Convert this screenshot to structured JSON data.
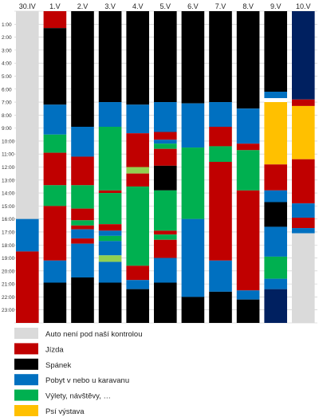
{
  "chart_data": {
    "type": "bar",
    "orientation": "vertical stacked timeline",
    "y_axis": {
      "labels": [
        "1:00",
        "2:00",
        "3:00",
        "4:00",
        "5:00",
        "6:00",
        "7:00",
        "8:00",
        "9:00",
        "10:00",
        "11:00",
        "12:00",
        "13:00",
        "14:00",
        "15:00",
        "16:00",
        "17:00",
        "18:00",
        "19:00",
        "20:00",
        "21:00",
        "22:00",
        "23:00"
      ],
      "range_hours": [
        0,
        24
      ],
      "inverted": true
    },
    "colors": {
      "not_controlled": "#dadada",
      "driving": "#c00000",
      "sleep": "#000000",
      "stay": "#0070c0",
      "trips": "#00b050",
      "dog_show": "#ffc000",
      "light_green": "#92d050",
      "navy": "#002060",
      "white": "#ffffff"
    },
    "legend": [
      {
        "key": "not_controlled",
        "label": "Auto není pod naší kontrolou"
      },
      {
        "key": "driving",
        "label": "Jízda"
      },
      {
        "key": "sleep",
        "label": "Spánek"
      },
      {
        "key": "stay",
        "label": "Pobyt v nebo u karavanu"
      },
      {
        "key": "trips",
        "label": "Výlety, návštěvy, …"
      },
      {
        "key": "dog_show",
        "label": "Psí výstava"
      }
    ],
    "days": [
      {
        "label": "30.IV",
        "segments": [
          {
            "start": 0,
            "end": 16,
            "cat": "not_controlled"
          },
          {
            "start": 16,
            "end": 18.5,
            "cat": "stay"
          },
          {
            "start": 18.5,
            "end": 24,
            "cat": "driving"
          }
        ]
      },
      {
        "label": "1.V",
        "segments": [
          {
            "start": 0,
            "end": 1.3,
            "cat": "driving"
          },
          {
            "start": 1.3,
            "end": 7.2,
            "cat": "sleep"
          },
          {
            "start": 7.2,
            "end": 9.5,
            "cat": "stay"
          },
          {
            "start": 9.5,
            "end": 10.9,
            "cat": "trips"
          },
          {
            "start": 10.9,
            "end": 13.4,
            "cat": "driving"
          },
          {
            "start": 13.4,
            "end": 15,
            "cat": "trips"
          },
          {
            "start": 15,
            "end": 19.2,
            "cat": "driving"
          },
          {
            "start": 19.2,
            "end": 20.9,
            "cat": "stay"
          },
          {
            "start": 20.9,
            "end": 24,
            "cat": "sleep"
          }
        ]
      },
      {
        "label": "2.V",
        "segments": [
          {
            "start": 0,
            "end": 8.9,
            "cat": "sleep"
          },
          {
            "start": 8.9,
            "end": 11.2,
            "cat": "stay"
          },
          {
            "start": 11.2,
            "end": 13.4,
            "cat": "driving"
          },
          {
            "start": 13.4,
            "end": 15.2,
            "cat": "trips"
          },
          {
            "start": 15.2,
            "end": 16.1,
            "cat": "driving"
          },
          {
            "start": 16.1,
            "end": 16.5,
            "cat": "trips"
          },
          {
            "start": 16.5,
            "end": 16.8,
            "cat": "driving"
          },
          {
            "start": 16.8,
            "end": 17.5,
            "cat": "stay"
          },
          {
            "start": 17.5,
            "end": 17.9,
            "cat": "driving"
          },
          {
            "start": 17.9,
            "end": 20.5,
            "cat": "stay"
          },
          {
            "start": 20.5,
            "end": 24,
            "cat": "sleep"
          }
        ]
      },
      {
        "label": "3.V",
        "segments": [
          {
            "start": 0,
            "end": 7,
            "cat": "sleep"
          },
          {
            "start": 7,
            "end": 8.9,
            "cat": "stay"
          },
          {
            "start": 8.9,
            "end": 13.8,
            "cat": "trips"
          },
          {
            "start": 13.8,
            "end": 14,
            "cat": "driving"
          },
          {
            "start": 14,
            "end": 16.4,
            "cat": "trips"
          },
          {
            "start": 16.4,
            "end": 16.9,
            "cat": "driving"
          },
          {
            "start": 16.9,
            "end": 17.3,
            "cat": "stay"
          },
          {
            "start": 17.3,
            "end": 17.7,
            "cat": "trips"
          },
          {
            "start": 17.7,
            "end": 18.8,
            "cat": "stay"
          },
          {
            "start": 18.8,
            "end": 19.3,
            "cat": "light_green"
          },
          {
            "start": 19.3,
            "end": 20.9,
            "cat": "stay"
          },
          {
            "start": 20.9,
            "end": 24,
            "cat": "sleep"
          }
        ]
      },
      {
        "label": "4.V",
        "segments": [
          {
            "start": 0,
            "end": 7.2,
            "cat": "sleep"
          },
          {
            "start": 7.2,
            "end": 9.4,
            "cat": "stay"
          },
          {
            "start": 9.4,
            "end": 12,
            "cat": "driving"
          },
          {
            "start": 12,
            "end": 12.5,
            "cat": "light_green"
          },
          {
            "start": 12.5,
            "end": 13.5,
            "cat": "driving"
          },
          {
            "start": 13.5,
            "end": 19.6,
            "cat": "trips"
          },
          {
            "start": 19.6,
            "end": 20.7,
            "cat": "driving"
          },
          {
            "start": 20.7,
            "end": 21.4,
            "cat": "stay"
          },
          {
            "start": 21.4,
            "end": 24,
            "cat": "sleep"
          }
        ]
      },
      {
        "label": "5.V",
        "segments": [
          {
            "start": 0,
            "end": 7,
            "cat": "sleep"
          },
          {
            "start": 7,
            "end": 9.3,
            "cat": "stay"
          },
          {
            "start": 9.3,
            "end": 9.9,
            "cat": "driving"
          },
          {
            "start": 9.9,
            "end": 10.2,
            "cat": "stay"
          },
          {
            "start": 10.2,
            "end": 10.6,
            "cat": "trips"
          },
          {
            "start": 10.6,
            "end": 11.9,
            "cat": "driving"
          },
          {
            "start": 11.9,
            "end": 13.8,
            "cat": "sleep"
          },
          {
            "start": 13.8,
            "end": 16.9,
            "cat": "trips"
          },
          {
            "start": 16.9,
            "end": 17.2,
            "cat": "driving"
          },
          {
            "start": 17.2,
            "end": 17.6,
            "cat": "trips"
          },
          {
            "start": 17.6,
            "end": 19,
            "cat": "driving"
          },
          {
            "start": 19,
            "end": 20.9,
            "cat": "stay"
          },
          {
            "start": 20.9,
            "end": 24,
            "cat": "sleep"
          }
        ]
      },
      {
        "label": "6.V",
        "segments": [
          {
            "start": 0,
            "end": 7.1,
            "cat": "sleep"
          },
          {
            "start": 7.1,
            "end": 10.5,
            "cat": "stay"
          },
          {
            "start": 10.5,
            "end": 16,
            "cat": "trips"
          },
          {
            "start": 16,
            "end": 22,
            "cat": "stay"
          },
          {
            "start": 22,
            "end": 24,
            "cat": "sleep"
          }
        ]
      },
      {
        "label": "7.V",
        "segments": [
          {
            "start": 0,
            "end": 7,
            "cat": "sleep"
          },
          {
            "start": 7,
            "end": 8.9,
            "cat": "stay"
          },
          {
            "start": 8.9,
            "end": 10.4,
            "cat": "driving"
          },
          {
            "start": 10.4,
            "end": 11.6,
            "cat": "trips"
          },
          {
            "start": 11.6,
            "end": 19.2,
            "cat": "driving"
          },
          {
            "start": 19.2,
            "end": 21.6,
            "cat": "stay"
          },
          {
            "start": 21.6,
            "end": 24,
            "cat": "sleep"
          }
        ]
      },
      {
        "label": "8.V",
        "segments": [
          {
            "start": 0,
            "end": 7.5,
            "cat": "sleep"
          },
          {
            "start": 7.5,
            "end": 10.2,
            "cat": "stay"
          },
          {
            "start": 10.2,
            "end": 10.7,
            "cat": "driving"
          },
          {
            "start": 10.7,
            "end": 13.8,
            "cat": "trips"
          },
          {
            "start": 13.8,
            "end": 21.5,
            "cat": "driving"
          },
          {
            "start": 21.5,
            "end": 22.2,
            "cat": "stay"
          },
          {
            "start": 22.2,
            "end": 24,
            "cat": "sleep"
          }
        ]
      },
      {
        "label": "9.V",
        "segments": [
          {
            "start": 0,
            "end": 6.2,
            "cat": "sleep"
          },
          {
            "start": 6.2,
            "end": 6.7,
            "cat": "stay"
          },
          {
            "start": 6.7,
            "end": 7,
            "cat": "white"
          },
          {
            "start": 7,
            "end": 11.8,
            "cat": "dog_show"
          },
          {
            "start": 11.8,
            "end": 13.8,
            "cat": "driving"
          },
          {
            "start": 13.8,
            "end": 14.7,
            "cat": "stay"
          },
          {
            "start": 14.7,
            "end": 16.6,
            "cat": "sleep"
          },
          {
            "start": 16.6,
            "end": 18.9,
            "cat": "stay"
          },
          {
            "start": 18.9,
            "end": 20.6,
            "cat": "trips"
          },
          {
            "start": 20.6,
            "end": 21.4,
            "cat": "stay"
          },
          {
            "start": 21.4,
            "end": 24,
            "cat": "navy"
          }
        ]
      },
      {
        "label": "10.V",
        "segments": [
          {
            "start": 0,
            "end": 6.8,
            "cat": "navy"
          },
          {
            "start": 6.8,
            "end": 7.3,
            "cat": "driving"
          },
          {
            "start": 7.3,
            "end": 11.4,
            "cat": "dog_show"
          },
          {
            "start": 11.4,
            "end": 14.8,
            "cat": "driving"
          },
          {
            "start": 14.8,
            "end": 15.9,
            "cat": "stay"
          },
          {
            "start": 15.9,
            "end": 16.7,
            "cat": "driving"
          },
          {
            "start": 16.7,
            "end": 17.1,
            "cat": "stay"
          },
          {
            "start": 17.1,
            "end": 24,
            "cat": "not_controlled"
          }
        ]
      }
    ]
  }
}
